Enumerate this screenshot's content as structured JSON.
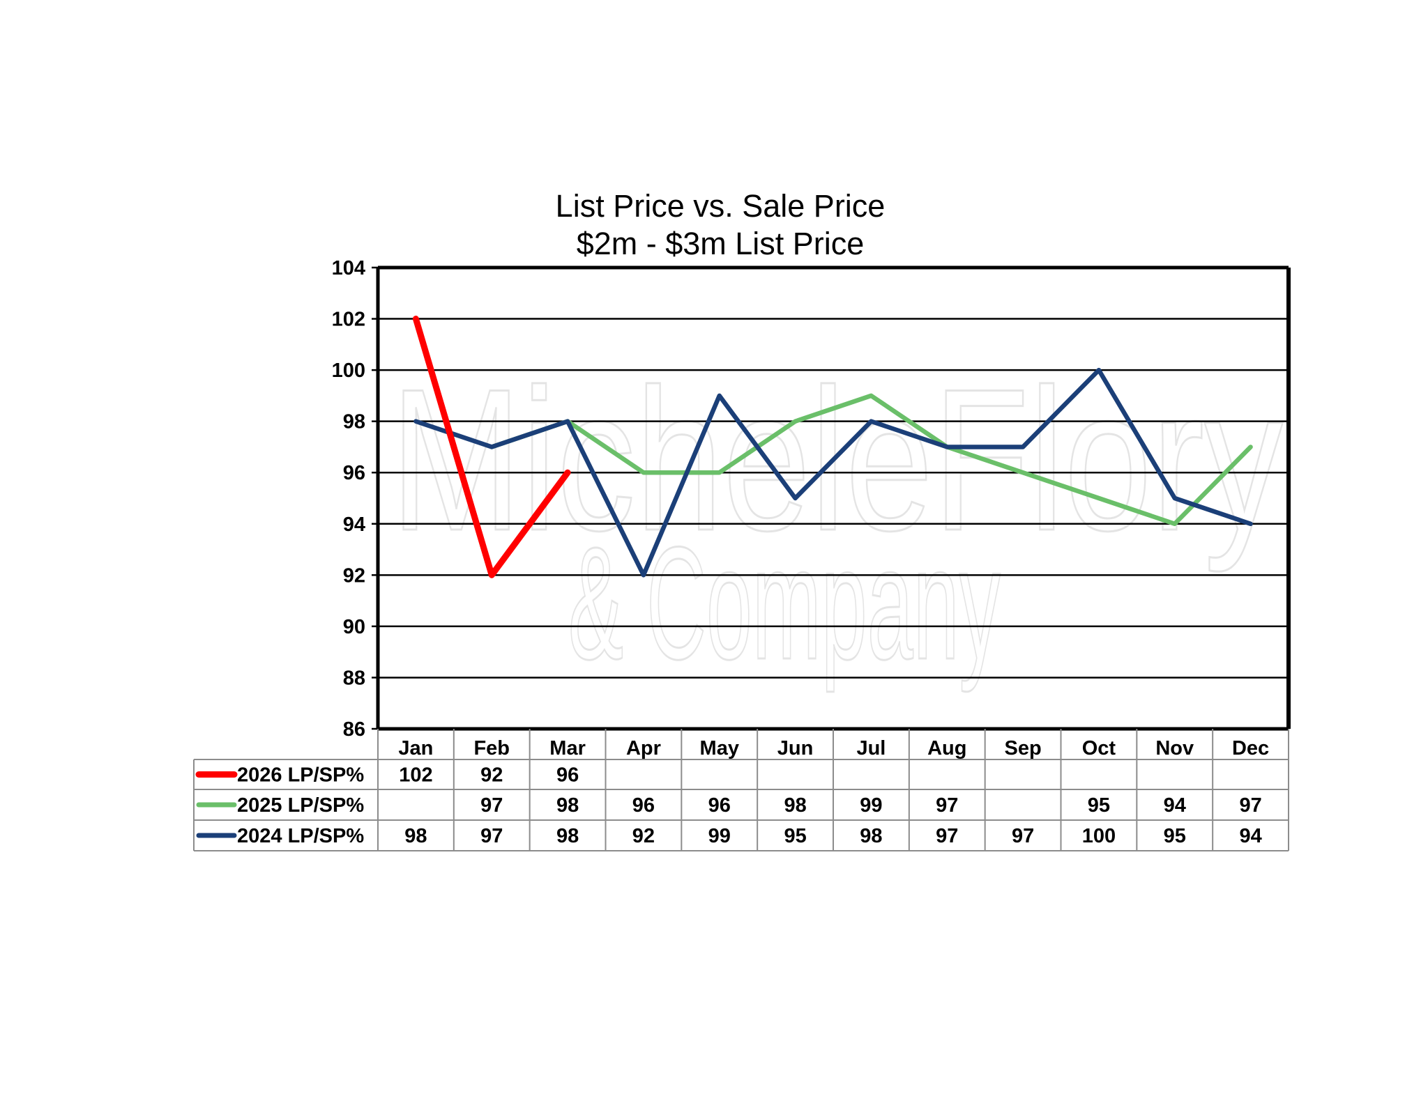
{
  "chart_data": {
    "type": "line",
    "title": "List Price vs. Sale Price",
    "subtitle": "$2m - $3m List Price",
    "xlabel": "",
    "ylabel": "",
    "ylim": [
      86,
      104
    ],
    "y_ticks": [
      "86",
      "88",
      "90",
      "92",
      "94",
      "96",
      "98",
      "100",
      "102",
      "104"
    ],
    "grid": true,
    "legend_placement": "data-table-left",
    "categories": [
      "Jan",
      "Feb",
      "Mar",
      "Apr",
      "May",
      "Jun",
      "Jul",
      "Aug",
      "Sep",
      "Oct",
      "Nov",
      "Dec"
    ],
    "series": [
      {
        "name": "2026 LP/SP%",
        "color": "#ff0000",
        "values": [
          102,
          92,
          96,
          null,
          null,
          null,
          null,
          null,
          null,
          null,
          null,
          null
        ]
      },
      {
        "name": "2025 LP/SP%",
        "color": "#6abf69",
        "values": [
          null,
          97,
          98,
          96,
          96,
          98,
          99,
          97,
          null,
          95,
          94,
          97
        ]
      },
      {
        "name": "2024 LP/SP%",
        "color": "#1b3f78",
        "values": [
          98,
          97,
          98,
          92,
          99,
          95,
          98,
          97,
          97,
          100,
          95,
          94
        ]
      }
    ]
  },
  "watermark": {
    "line1": "MicheleFlory",
    "line2": "& Company"
  }
}
